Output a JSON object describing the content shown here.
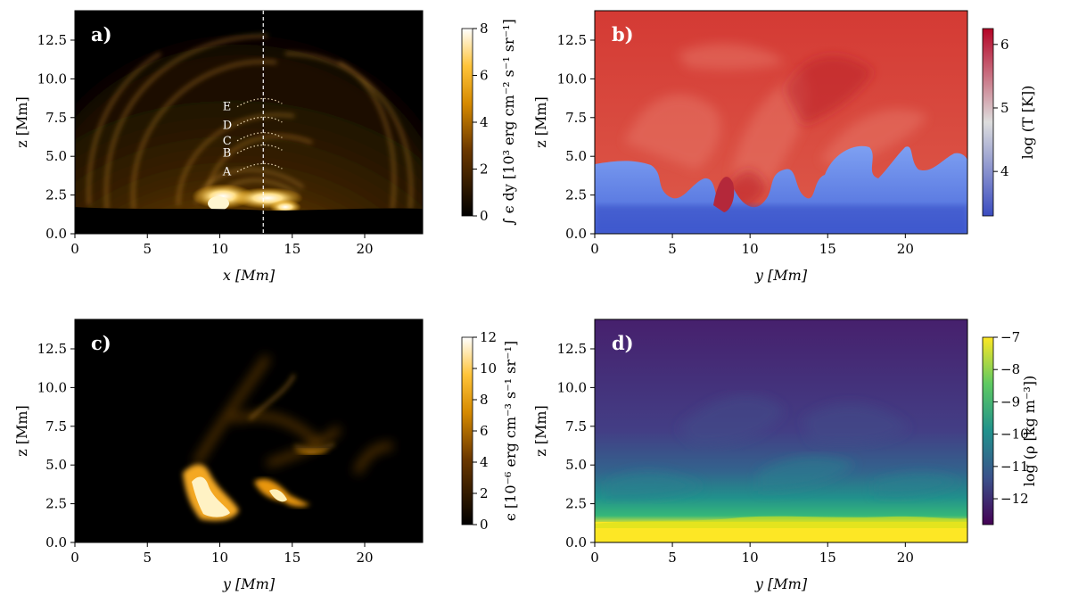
{
  "chart_data": [
    {
      "type": "heatmap",
      "panel_label": "a)",
      "xlabel": "x [Mm]",
      "ylabel": "z [Mm]",
      "xlim": [
        0,
        24
      ],
      "ylim": [
        0,
        14.4
      ],
      "xticks": [
        "0",
        "5",
        "10",
        "15",
        "20"
      ],
      "yticks": [
        "0.0",
        "2.5",
        "5.0",
        "7.5",
        "10.0",
        "12.5"
      ],
      "colorbar": {
        "label": "∫ ϵ dy [10³ erg cm⁻² s⁻¹ sr⁻¹]",
        "ticks": [
          "0",
          "2",
          "4",
          "6",
          "8"
        ],
        "range": [
          0,
          8
        ],
        "colormap": "afmhot"
      },
      "vertical_line_x": 13,
      "arc_labels": [
        "E",
        "D",
        "C",
        "B",
        "A"
      ],
      "colors": {
        "dark": "#000000",
        "mid": "#b07000",
        "bright": "#fff2c0"
      }
    },
    {
      "type": "heatmap",
      "panel_label": "b)",
      "xlabel": "y [Mm]",
      "ylabel": "z [Mm]",
      "xlim": [
        0,
        24
      ],
      "ylim": [
        0,
        14.4
      ],
      "xticks": [
        "0",
        "5",
        "10",
        "15",
        "20"
      ],
      "yticks": [
        "0.0",
        "2.5",
        "5.0",
        "7.5",
        "10.0",
        "12.5"
      ],
      "colorbar": {
        "label": "log (T [K])",
        "ticks": [
          "4",
          "5",
          "6"
        ],
        "range": [
          3.3,
          6.25
        ],
        "colormap": "coolwarm"
      },
      "colors": {
        "hot": "#d8453a",
        "cool": "#5b7de6"
      }
    },
    {
      "type": "heatmap",
      "panel_label": "c)",
      "xlabel": "y [Mm]",
      "ylabel": "z [Mm]",
      "xlim": [
        0,
        24
      ],
      "ylim": [
        0,
        14.4
      ],
      "xticks": [
        "0",
        "5",
        "10",
        "15",
        "20"
      ],
      "yticks": [
        "0.0",
        "2.5",
        "5.0",
        "7.5",
        "10.0",
        "12.5"
      ],
      "colorbar": {
        "label": "ϵ [10⁻⁶ erg cm⁻³ s⁻¹ sr⁻¹]",
        "ticks": [
          "0",
          "2",
          "4",
          "6",
          "8",
          "10",
          "12"
        ],
        "range": [
          0,
          12
        ],
        "colormap": "afmhot"
      },
      "colors": {
        "dark": "#000000",
        "mid": "#c98200",
        "bright": "#fff4cf"
      }
    },
    {
      "type": "heatmap",
      "panel_label": "d)",
      "xlabel": "y [Mm]",
      "ylabel": "z [Mm]",
      "xlim": [
        0,
        24
      ],
      "ylim": [
        0,
        14.4
      ],
      "xticks": [
        "0",
        "5",
        "10",
        "15",
        "20"
      ],
      "yticks": [
        "0.0",
        "2.5",
        "5.0",
        "7.5",
        "10.0",
        "12.5"
      ],
      "colorbar": {
        "label": "log (ρ [kg m⁻³])",
        "ticks": [
          "−7",
          "−8",
          "−9",
          "−10",
          "−11",
          "−12"
        ],
        "range": [
          -12.8,
          -7
        ],
        "colormap": "viridis"
      },
      "colors": {
        "low": "#45186a",
        "mid": "#23918b",
        "high": "#fde725"
      }
    }
  ]
}
